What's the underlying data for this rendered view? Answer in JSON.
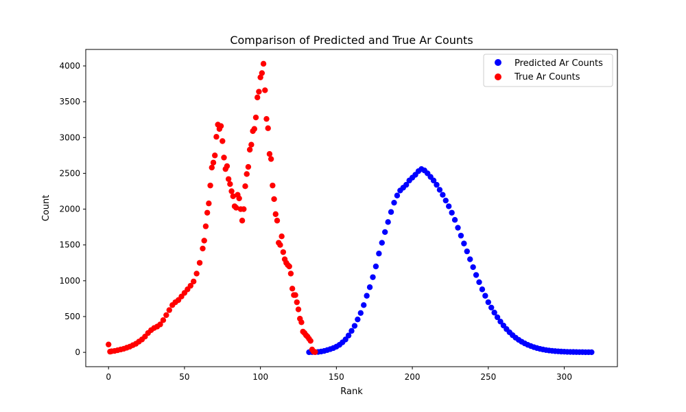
{
  "chart_data": {
    "type": "scatter",
    "title": "Comparison of Predicted and True Ar Counts",
    "xlabel": "Rank",
    "ylabel": "Count",
    "xlim": [
      -15,
      335
    ],
    "ylim": [
      -200,
      4230
    ],
    "xticks": [
      0,
      50,
      100,
      150,
      200,
      250,
      300
    ],
    "yticks": [
      0,
      500,
      1000,
      1500,
      2000,
      2500,
      3000,
      3500,
      4000
    ],
    "grid": false,
    "legend_position": "top-right",
    "series": [
      {
        "name": "Predicted Ar Counts",
        "color": "#0000ff",
        "points": [
          [
            132,
            2
          ],
          [
            134,
            4
          ],
          [
            136,
            3
          ],
          [
            138,
            6
          ],
          [
            140,
            12
          ],
          [
            142,
            20
          ],
          [
            144,
            32
          ],
          [
            146,
            45
          ],
          [
            148,
            60
          ],
          [
            150,
            80
          ],
          [
            152,
            105
          ],
          [
            154,
            140
          ],
          [
            156,
            180
          ],
          [
            158,
            235
          ],
          [
            160,
            300
          ],
          [
            162,
            370
          ],
          [
            164,
            460
          ],
          [
            166,
            550
          ],
          [
            168,
            660
          ],
          [
            170,
            790
          ],
          [
            172,
            910
          ],
          [
            174,
            1050
          ],
          [
            176,
            1200
          ],
          [
            178,
            1380
          ],
          [
            180,
            1530
          ],
          [
            182,
            1680
          ],
          [
            184,
            1820
          ],
          [
            186,
            1960
          ],
          [
            188,
            2090
          ],
          [
            190,
            2190
          ],
          [
            192,
            2260
          ],
          [
            194,
            2300
          ],
          [
            196,
            2340
          ],
          [
            198,
            2400
          ],
          [
            200,
            2440
          ],
          [
            202,
            2480
          ],
          [
            204,
            2530
          ],
          [
            206,
            2560
          ],
          [
            208,
            2540
          ],
          [
            210,
            2500
          ],
          [
            212,
            2450
          ],
          [
            214,
            2400
          ],
          [
            216,
            2340
          ],
          [
            218,
            2270
          ],
          [
            220,
            2200
          ],
          [
            222,
            2120
          ],
          [
            224,
            2040
          ],
          [
            226,
            1950
          ],
          [
            228,
            1850
          ],
          [
            230,
            1740
          ],
          [
            232,
            1630
          ],
          [
            234,
            1520
          ],
          [
            236,
            1410
          ],
          [
            238,
            1300
          ],
          [
            240,
            1190
          ],
          [
            242,
            1080
          ],
          [
            244,
            980
          ],
          [
            246,
            880
          ],
          [
            248,
            790
          ],
          [
            250,
            700
          ],
          [
            252,
            625
          ],
          [
            254,
            555
          ],
          [
            256,
            490
          ],
          [
            258,
            430
          ],
          [
            260,
            375
          ],
          [
            262,
            325
          ],
          [
            264,
            280
          ],
          [
            266,
            240
          ],
          [
            268,
            205
          ],
          [
            270,
            175
          ],
          [
            272,
            148
          ],
          [
            274,
            125
          ],
          [
            276,
            105
          ],
          [
            278,
            88
          ],
          [
            280,
            73
          ],
          [
            282,
            60
          ],
          [
            284,
            49
          ],
          [
            286,
            40
          ],
          [
            288,
            32
          ],
          [
            290,
            26
          ],
          [
            292,
            21
          ],
          [
            294,
            17
          ],
          [
            296,
            14
          ],
          [
            298,
            11
          ],
          [
            300,
            9
          ],
          [
            302,
            7
          ],
          [
            304,
            6
          ],
          [
            306,
            5
          ],
          [
            308,
            4
          ],
          [
            310,
            3
          ],
          [
            312,
            3
          ],
          [
            314,
            2
          ],
          [
            316,
            2
          ],
          [
            318,
            2
          ]
        ]
      },
      {
        "name": "True Ar Counts",
        "color": "#ff0000",
        "points": [
          [
            0,
            110
          ],
          [
            1,
            10
          ],
          [
            2,
            15
          ],
          [
            4,
            20
          ],
          [
            6,
            30
          ],
          [
            8,
            40
          ],
          [
            10,
            50
          ],
          [
            12,
            65
          ],
          [
            14,
            80
          ],
          [
            16,
            100
          ],
          [
            18,
            120
          ],
          [
            20,
            150
          ],
          [
            22,
            180
          ],
          [
            24,
            220
          ],
          [
            26,
            270
          ],
          [
            28,
            310
          ],
          [
            30,
            340
          ],
          [
            32,
            360
          ],
          [
            34,
            390
          ],
          [
            36,
            450
          ],
          [
            38,
            520
          ],
          [
            40,
            590
          ],
          [
            42,
            660
          ],
          [
            44,
            700
          ],
          [
            46,
            730
          ],
          [
            48,
            780
          ],
          [
            50,
            830
          ],
          [
            52,
            880
          ],
          [
            54,
            930
          ],
          [
            56,
            990
          ],
          [
            58,
            1100
          ],
          [
            60,
            1250
          ],
          [
            62,
            1450
          ],
          [
            63,
            1560
          ],
          [
            64,
            1760
          ],
          [
            65,
            1950
          ],
          [
            66,
            2080
          ],
          [
            67,
            2330
          ],
          [
            68,
            2580
          ],
          [
            69,
            2650
          ],
          [
            70,
            2750
          ],
          [
            71,
            3010
          ],
          [
            72,
            3180
          ],
          [
            73,
            3120
          ],
          [
            74,
            3160
          ],
          [
            75,
            2950
          ],
          [
            76,
            2720
          ],
          [
            77,
            2560
          ],
          [
            78,
            2600
          ],
          [
            79,
            2420
          ],
          [
            80,
            2350
          ],
          [
            81,
            2250
          ],
          [
            82,
            2180
          ],
          [
            83,
            2040
          ],
          [
            84,
            2020
          ],
          [
            85,
            2200
          ],
          [
            86,
            2150
          ],
          [
            87,
            2000
          ],
          [
            88,
            1840
          ],
          [
            89,
            2000
          ],
          [
            90,
            2320
          ],
          [
            91,
            2490
          ],
          [
            92,
            2590
          ],
          [
            93,
            2830
          ],
          [
            94,
            2900
          ],
          [
            95,
            3090
          ],
          [
            96,
            3120
          ],
          [
            97,
            3280
          ],
          [
            98,
            3560
          ],
          [
            99,
            3640
          ],
          [
            100,
            3840
          ],
          [
            101,
            3900
          ],
          [
            102,
            4030
          ],
          [
            103,
            3660
          ],
          [
            104,
            3260
          ],
          [
            105,
            3130
          ],
          [
            106,
            2770
          ],
          [
            107,
            2700
          ],
          [
            108,
            2330
          ],
          [
            109,
            2140
          ],
          [
            110,
            1930
          ],
          [
            111,
            1840
          ],
          [
            112,
            1530
          ],
          [
            113,
            1500
          ],
          [
            114,
            1620
          ],
          [
            115,
            1400
          ],
          [
            116,
            1300
          ],
          [
            117,
            1250
          ],
          [
            118,
            1220
          ],
          [
            119,
            1200
          ],
          [
            120,
            1100
          ],
          [
            121,
            890
          ],
          [
            122,
            800
          ],
          [
            123,
            800
          ],
          [
            124,
            700
          ],
          [
            125,
            600
          ],
          [
            126,
            470
          ],
          [
            127,
            420
          ],
          [
            128,
            290
          ],
          [
            129,
            270
          ],
          [
            130,
            240
          ],
          [
            131,
            220
          ],
          [
            132,
            190
          ],
          [
            133,
            160
          ],
          [
            134,
            40
          ],
          [
            135,
            10
          ],
          [
            136,
            5
          ]
        ]
      }
    ]
  }
}
